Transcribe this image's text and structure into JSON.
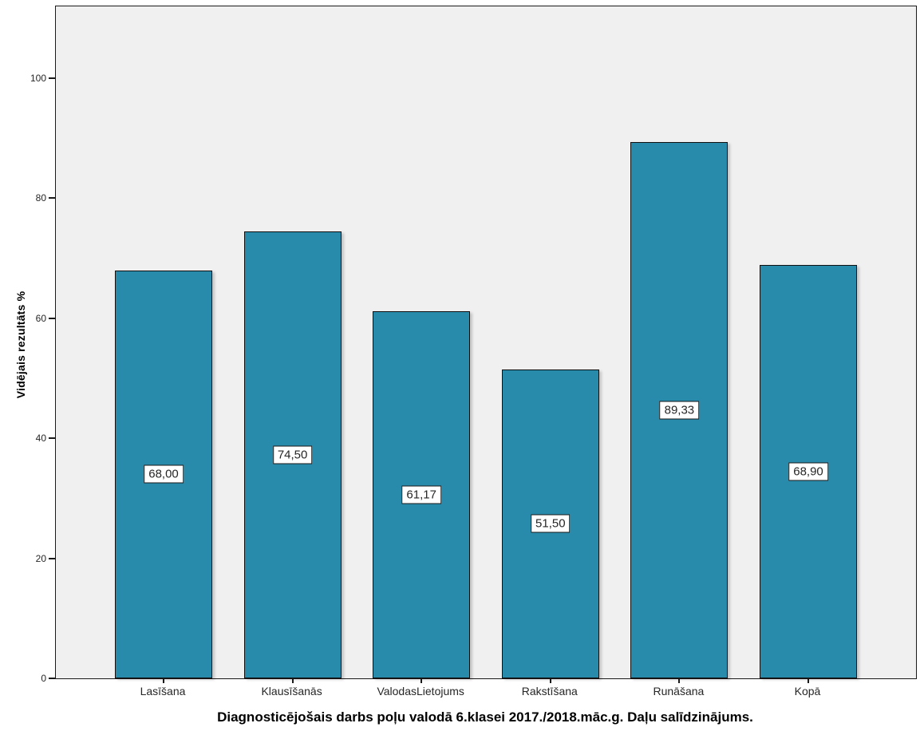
{
  "chart_data": {
    "type": "bar",
    "categories": [
      "Lasīšana",
      "Klausīšanās",
      "ValodasLietojums",
      "Rakstīšana",
      "Runāšana",
      "Kopā"
    ],
    "values": [
      68.0,
      74.5,
      61.17,
      51.5,
      89.33,
      68.9
    ],
    "value_labels": [
      "68,00",
      "74,50",
      "61,17",
      "51,50",
      "89,33",
      "68,90"
    ],
    "x_axis_title": "Diagnosticējošais darbs poļu valodā 6.klasei 2017./2018.māc.g. Daļu salīdzinājums.",
    "y_axis_title": "Vidējais rezultāts %",
    "yticks": [
      0,
      20,
      40,
      60,
      80,
      100
    ],
    "ylim": [
      0,
      112
    ],
    "grid": false,
    "legend": false,
    "colors": {
      "bar_fill": "#298bab",
      "bar_border": "#101010",
      "plot_bg": "#f0f0f0",
      "axis": "#1a1a1a",
      "tick_text": "#262626",
      "category_text": "#262626",
      "value_text": "#262626",
      "label_box_bg": "#ffffff",
      "label_box_border": "#1a1a1a",
      "page_bg": "#ffffff"
    }
  }
}
